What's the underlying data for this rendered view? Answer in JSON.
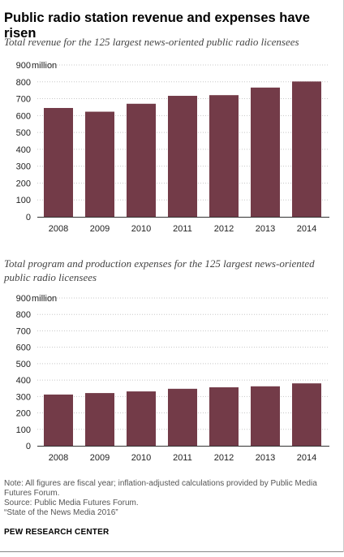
{
  "title": "Public radio station revenue and expenses have risen",
  "colors": {
    "bar": "#733b48",
    "grid": "#c8c8c8",
    "axis": "#333333"
  },
  "chart_data": [
    {
      "type": "bar",
      "title": "Total revenue for the 125 largest news-oriented public radio licensees",
      "categories": [
        "2008",
        "2009",
        "2010",
        "2011",
        "2012",
        "2013",
        "2014"
      ],
      "values": [
        645,
        623,
        670,
        717,
        721,
        766,
        802
      ],
      "ylim": [
        0,
        900
      ],
      "yticks": [
        0,
        100,
        200,
        300,
        400,
        500,
        600,
        700,
        800,
        900
      ],
      "y_unit": "million",
      "grid": true
    },
    {
      "type": "bar",
      "title": "Total program and production expenses for the 125 largest news-oriented public radio licensees",
      "categories": [
        "2008",
        "2009",
        "2010",
        "2011",
        "2012",
        "2013",
        "2014"
      ],
      "values": [
        312,
        321,
        331,
        347,
        356,
        362,
        380
      ],
      "ylim": [
        0,
        900
      ],
      "yticks": [
        0,
        100,
        200,
        300,
        400,
        500,
        600,
        700,
        800,
        900
      ],
      "y_unit": "million",
      "grid": true
    }
  ],
  "footer": {
    "note": "Note: All figures are fiscal year; inflation-adjusted calculations provided by Public Media Futures Forum.",
    "source": "Source: Public Media Futures Forum.",
    "report": "“State of the News Media 2016”",
    "brand": "PEW RESEARCH CENTER"
  }
}
